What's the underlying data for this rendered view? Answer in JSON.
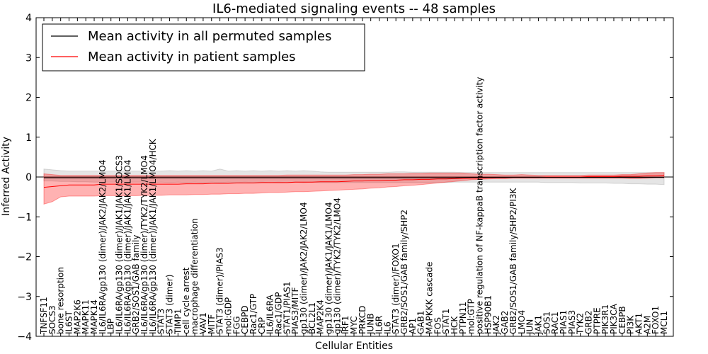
{
  "chart_data": {
    "type": "line",
    "title": "IL6-mediated signaling events -- 48 samples",
    "xlabel": "Cellular Entities",
    "ylabel": "Inferred Activity",
    "ylim": [
      -4,
      4
    ],
    "yticks": [
      "4",
      "3",
      "2",
      "1",
      "0",
      "−1",
      "−2",
      "−3",
      "−4"
    ],
    "ytick_values": [
      4,
      3,
      2,
      1,
      0,
      -1,
      -2,
      -3,
      -4
    ],
    "legend": {
      "placement": "top-left",
      "entries": [
        {
          "label": "Mean activity in all permuted samples",
          "color": "#000000"
        },
        {
          "label": "Mean activity in patient samples",
          "color": "#ff0000"
        }
      ]
    },
    "categories": [
      "TNFSF11",
      "SOCS3",
      "bone resorption",
      "IL6ST",
      "MAP2K6",
      "MAPK11",
      "MAPK14",
      "IL6/IL6RA/gp130 (dimer)/JAK2/JAK2/LMO4",
      "LBP",
      "IL6/IL6RA/gp130 (dimer)/JAK1/JAK1/SOCS3",
      "IL6/IL6RA/gp130 (dimer)/JAK1/JAK1/LMO4",
      "GRB2/SOS1/GAB family",
      "IL6/IL6RA/gp130 (dimer)/TYK2/TYK2/LMO4",
      "IL6/IL6RA/gp130 (dimer)/JAK1/JAK1/LMO4/HCK",
      "STAT3",
      "STAT3 (dimer)",
      "TIMP1",
      "cell cycle arrest",
      "macrophage differentiation",
      "VAV1",
      "MITF",
      "STAT3 (dimer)/PIAS3",
      "mol:GDP",
      "FGG",
      "CEBPD",
      "Rac1/GTP",
      "CRP",
      "IL6/IL6RA",
      "Rac1/GDP",
      "STAT1/PIAS1",
      "PIAS3/MITF",
      "gp130 (dimer)/JAK2/JAK2/LMO4",
      "BCL2L1",
      "MAP2K4",
      "gp130 (dimer)/JAK1/JAK1/LMO4",
      "gp130 (dimer)/TYK2/TYK2/LMO4",
      "IRF1",
      "MYC",
      "PRKCD",
      "JUNB",
      "IL6R",
      "IL6",
      "STAT3 (dimer)/FOXO1",
      "GRB2/SOS1/GAB family/SHP2",
      "AP1",
      "GAB1",
      "MAPKKK cascade",
      "FOS",
      "STAT1",
      "HCK",
      "PTPN11",
      "mol:GTP",
      "positive regulation of NF-kappaB transcription factor activity",
      "HSP90B1",
      "JAK2",
      "GAB2",
      "GRB2/SOS1/GAB family/SHP2/PI3K",
      "LMO4",
      "JUN",
      "JAK1",
      "SOS1",
      "RAC1",
      "PIAS1",
      "PIAS3",
      "TYK2",
      "GRB2",
      "PTPRE",
      "PIK3R1",
      "PIK3CA",
      "CEBPB",
      "PI3K",
      "AKT1",
      "A2M",
      "FOXO1",
      "MCL1"
    ],
    "series": [
      {
        "name": "Mean activity in all permuted samples",
        "color": "#000000",
        "values": [
          -0.02,
          -0.02,
          -0.02,
          -0.02,
          -0.02,
          -0.02,
          -0.02,
          -0.02,
          -0.02,
          -0.02,
          -0.02,
          -0.02,
          -0.02,
          -0.02,
          -0.02,
          -0.02,
          -0.02,
          -0.02,
          -0.02,
          -0.02,
          -0.02,
          -0.02,
          -0.02,
          -0.02,
          -0.02,
          -0.02,
          -0.02,
          -0.02,
          -0.02,
          -0.02,
          -0.02,
          -0.02,
          -0.02,
          -0.02,
          -0.02,
          -0.02,
          -0.02,
          -0.02,
          -0.02,
          -0.02,
          -0.02,
          -0.02,
          -0.02,
          -0.02,
          -0.02,
          -0.02,
          -0.02,
          -0.02,
          -0.02,
          -0.02,
          -0.01,
          -0.01,
          -0.01,
          -0.01,
          -0.01,
          -0.01,
          -0.01,
          -0.01,
          -0.01,
          -0.01,
          -0.01,
          -0.01,
          -0.01,
          -0.01,
          -0.01,
          -0.01,
          -0.01,
          -0.01,
          -0.01,
          -0.01,
          -0.01,
          -0.01,
          -0.01,
          -0.01,
          -0.01
        ],
        "band_lower": [
          -0.1,
          -0.1,
          -0.11,
          -0.11,
          -0.12,
          -0.12,
          -0.13,
          -0.13,
          -0.13,
          -0.13,
          -0.13,
          -0.13,
          -0.13,
          -0.14,
          -0.13,
          -0.14,
          -0.13,
          -0.14,
          -0.13,
          -0.14,
          -0.13,
          -0.14,
          -0.13,
          -0.14,
          -0.13,
          -0.14,
          -0.13,
          -0.14,
          -0.13,
          -0.14,
          -0.13,
          -0.14,
          -0.13,
          -0.14,
          -0.14,
          -0.14,
          -0.14,
          -0.14,
          -0.14,
          -0.14,
          -0.14,
          -0.14,
          -0.14,
          -0.14,
          -0.14,
          -0.14,
          -0.14,
          -0.14,
          -0.14,
          -0.13,
          -0.13,
          -0.13,
          -0.13,
          -0.13,
          -0.13,
          -0.13,
          -0.13,
          -0.13,
          -0.13,
          -0.13,
          -0.14,
          -0.14,
          -0.14,
          -0.14,
          -0.15,
          -0.15,
          -0.15,
          -0.15,
          -0.16,
          -0.16,
          -0.17,
          -0.17,
          -0.18,
          -0.18,
          -0.19
        ],
        "band_upper": [
          0.2,
          0.18,
          0.16,
          0.15,
          0.15,
          0.15,
          0.15,
          0.15,
          0.15,
          0.15,
          0.15,
          0.15,
          0.15,
          0.15,
          0.15,
          0.16,
          0.15,
          0.16,
          0.15,
          0.16,
          0.15,
          0.2,
          0.15,
          0.16,
          0.15,
          0.16,
          0.15,
          0.16,
          0.15,
          0.16,
          0.15,
          0.16,
          0.15,
          0.13,
          0.12,
          0.12,
          0.12,
          0.12,
          0.12,
          0.12,
          0.12,
          0.12,
          0.13,
          0.13,
          0.12,
          0.12,
          0.12,
          0.12,
          0.12,
          0.12,
          0.11,
          0.11,
          0.11,
          0.11,
          0.11,
          0.11,
          0.11,
          0.11,
          0.11,
          0.11,
          0.11,
          0.11,
          0.11,
          0.11,
          0.11,
          0.11,
          0.11,
          0.11,
          0.11,
          0.11,
          0.11,
          0.11,
          0.11,
          0.11,
          0.11
        ]
      },
      {
        "name": "Mean activity in patient samples",
        "color": "#ff0000",
        "values": [
          -0.26,
          -0.24,
          -0.22,
          -0.2,
          -0.2,
          -0.2,
          -0.2,
          -0.18,
          -0.18,
          -0.18,
          -0.18,
          -0.18,
          -0.18,
          -0.18,
          -0.18,
          -0.18,
          -0.18,
          -0.17,
          -0.17,
          -0.17,
          -0.16,
          -0.16,
          -0.16,
          -0.15,
          -0.15,
          -0.15,
          -0.14,
          -0.14,
          -0.14,
          -0.14,
          -0.13,
          -0.13,
          -0.13,
          -0.12,
          -0.12,
          -0.12,
          -0.11,
          -0.1,
          -0.1,
          -0.09,
          -0.09,
          -0.08,
          -0.08,
          -0.07,
          -0.07,
          -0.06,
          -0.06,
          -0.05,
          -0.05,
          -0.04,
          -0.04,
          -0.03,
          -0.03,
          -0.02,
          -0.02,
          -0.02,
          -0.01,
          -0.01,
          -0.01,
          -0.01,
          0.0,
          0.0,
          0.0,
          0.0,
          0.0,
          0.01,
          0.01,
          0.01,
          0.01,
          0.02,
          0.02,
          0.02,
          0.03,
          0.03,
          0.04
        ],
        "band_lower": [
          -0.68,
          -0.62,
          -0.5,
          -0.48,
          -0.48,
          -0.48,
          -0.48,
          -0.47,
          -0.47,
          -0.47,
          -0.47,
          -0.47,
          -0.46,
          -0.46,
          -0.46,
          -0.45,
          -0.45,
          -0.45,
          -0.44,
          -0.44,
          -0.43,
          -0.43,
          -0.42,
          -0.42,
          -0.41,
          -0.41,
          -0.4,
          -0.39,
          -0.39,
          -0.38,
          -0.37,
          -0.37,
          -0.36,
          -0.35,
          -0.34,
          -0.33,
          -0.32,
          -0.31,
          -0.3,
          -0.28,
          -0.27,
          -0.25,
          -0.24,
          -0.22,
          -0.21,
          -0.19,
          -0.17,
          -0.15,
          -0.13,
          -0.11,
          -0.09,
          -0.07,
          -0.06,
          -0.05,
          -0.04,
          -0.04,
          -0.03,
          -0.03,
          -0.03,
          -0.03,
          -0.03,
          -0.03,
          -0.03,
          -0.03,
          -0.03,
          -0.03,
          -0.03,
          -0.03,
          -0.03,
          -0.03,
          -0.04,
          -0.04,
          -0.03,
          -0.02,
          -0.02
        ],
        "band_upper": [
          0.08,
          0.06,
          0.04,
          0.04,
          0.04,
          0.04,
          0.04,
          0.04,
          0.04,
          0.04,
          0.04,
          0.04,
          0.04,
          0.04,
          0.04,
          0.04,
          0.04,
          0.04,
          0.04,
          0.04,
          0.04,
          0.04,
          0.04,
          0.04,
          0.04,
          0.04,
          0.04,
          0.04,
          0.04,
          0.05,
          0.05,
          0.05,
          0.05,
          0.05,
          0.05,
          0.05,
          0.05,
          0.06,
          0.06,
          0.07,
          0.07,
          0.08,
          0.08,
          0.08,
          0.09,
          0.09,
          0.1,
          0.1,
          0.1,
          0.1,
          0.1,
          0.08,
          0.07,
          0.07,
          0.06,
          0.05,
          0.05,
          0.06,
          0.05,
          0.04,
          0.04,
          0.04,
          0.04,
          0.04,
          0.04,
          0.05,
          0.05,
          0.05,
          0.05,
          0.06,
          0.06,
          0.08,
          0.1,
          0.11,
          0.11
        ]
      }
    ]
  }
}
